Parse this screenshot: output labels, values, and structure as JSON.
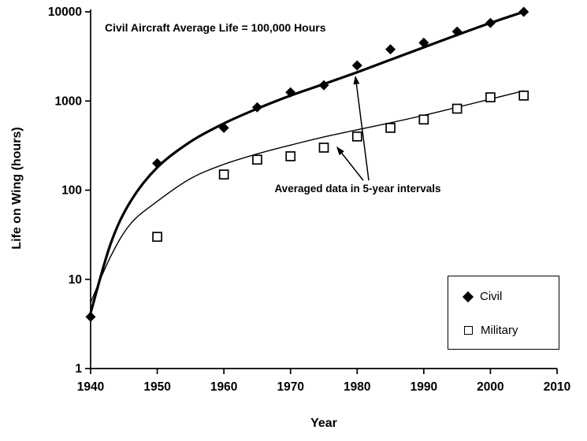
{
  "chart_data": {
    "type": "scatter",
    "title": "",
    "xlabel": "Year",
    "ylabel": "Life on Wing (hours)",
    "xlim": [
      1940,
      2010
    ],
    "ylim": [
      1,
      10000
    ],
    "y_scale": "log",
    "grid": false,
    "legend_position": "lower-right",
    "x_ticks": [
      "1940",
      "1950",
      "1960",
      "1970",
      "1980",
      "1990",
      "2000",
      "2010"
    ],
    "y_ticks": [
      "1",
      "10",
      "100",
      "1000",
      "10000"
    ],
    "annotations": {
      "top_note": "Civil Aircraft Average Life = 100,000 Hours",
      "interval_note": "Averaged data in 5-year intervals"
    },
    "series": [
      {
        "name": "Civil",
        "marker": "filled-diamond",
        "color": "#000000",
        "points": [
          [
            1940,
            3.8
          ],
          [
            1950,
            200
          ],
          [
            1960,
            500
          ],
          [
            1965,
            850
          ],
          [
            1970,
            1250
          ],
          [
            1975,
            1500
          ],
          [
            1980,
            2500
          ],
          [
            1985,
            3800
          ],
          [
            1990,
            4500
          ],
          [
            1995,
            6000
          ],
          [
            2000,
            7500
          ],
          [
            2005,
            10000
          ]
        ],
        "trend": [
          [
            1940,
            4.2
          ],
          [
            1943,
            25
          ],
          [
            1946,
            75
          ],
          [
            1950,
            180
          ],
          [
            1955,
            350
          ],
          [
            1960,
            560
          ],
          [
            1965,
            820
          ],
          [
            1970,
            1150
          ],
          [
            1975,
            1550
          ],
          [
            1980,
            2100
          ],
          [
            1985,
            2900
          ],
          [
            1990,
            4000
          ],
          [
            1995,
            5500
          ],
          [
            2000,
            7500
          ],
          [
            2005,
            10000
          ]
        ]
      },
      {
        "name": "Military",
        "marker": "open-square",
        "color": "#000000",
        "points": [
          [
            1950,
            30
          ],
          [
            1960,
            150
          ],
          [
            1965,
            220
          ],
          [
            1970,
            240
          ],
          [
            1975,
            300
          ],
          [
            1980,
            400
          ],
          [
            1985,
            500
          ],
          [
            1990,
            620
          ],
          [
            1995,
            820
          ],
          [
            2000,
            1100
          ],
          [
            2005,
            1150
          ]
        ],
        "trend": [
          [
            1940,
            5.5
          ],
          [
            1943,
            18
          ],
          [
            1946,
            42
          ],
          [
            1950,
            75
          ],
          [
            1955,
            135
          ],
          [
            1960,
            195
          ],
          [
            1965,
            255
          ],
          [
            1970,
            320
          ],
          [
            1975,
            395
          ],
          [
            1980,
            475
          ],
          [
            1985,
            570
          ],
          [
            1990,
            690
          ],
          [
            1995,
            850
          ],
          [
            2000,
            1050
          ],
          [
            2005,
            1300
          ]
        ]
      }
    ]
  },
  "colors": {
    "ink": "#000000",
    "background": "#ffffff"
  }
}
